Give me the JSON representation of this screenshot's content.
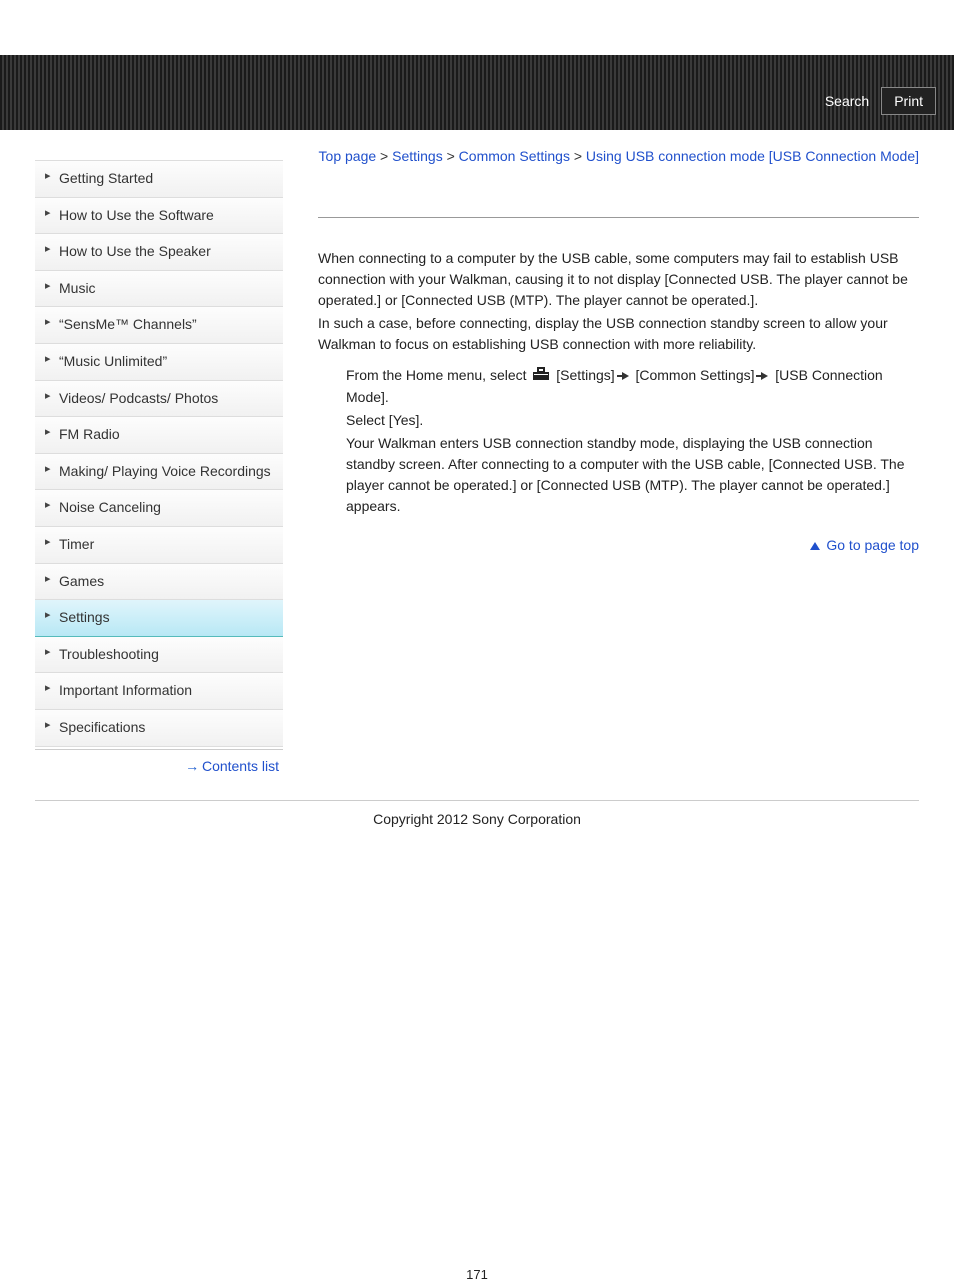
{
  "header": {
    "search": "Search",
    "print": "Print"
  },
  "sidebar": {
    "items": [
      {
        "label": "Getting Started",
        "active": false
      },
      {
        "label": "How to Use the Software",
        "active": false
      },
      {
        "label": "How to Use the Speaker",
        "active": false
      },
      {
        "label": "Music",
        "active": false
      },
      {
        "label": "“SensMe™ Channels”",
        "active": false
      },
      {
        "label": "“Music Unlimited”",
        "active": false
      },
      {
        "label": "Videos/ Podcasts/ Photos",
        "active": false
      },
      {
        "label": "FM Radio",
        "active": false
      },
      {
        "label": "Making/ Playing Voice Recordings",
        "active": false
      },
      {
        "label": "Noise Canceling",
        "active": false
      },
      {
        "label": "Timer",
        "active": false
      },
      {
        "label": "Games",
        "active": false
      },
      {
        "label": "Settings",
        "active": true
      },
      {
        "label": "Troubleshooting",
        "active": false
      },
      {
        "label": "Important Information",
        "active": false
      },
      {
        "label": "Specifications",
        "active": false
      }
    ],
    "contents_link": "Contents list"
  },
  "breadcrumb": {
    "items": [
      "Top page",
      "Settings",
      "Common Settings",
      "Using USB connection mode [USB Connection Mode]"
    ],
    "sep": ">"
  },
  "content": {
    "para1": "When connecting to a computer by the USB cable, some computers may fail to establish USB connection with your Walkman, causing it to not display [Connected USB. The player cannot be operated.] or [Connected USB (MTP). The player cannot be operated.].",
    "para2": "In such a case, before connecting, display the USB connection standby screen to allow your Walkman to focus on establishing USB connection with more reliability.",
    "step1_a": "From the Home menu, select ",
    "step1_b": " [Settings] ",
    "step1_c": " [Common Settings] ",
    "step1_d": " [USB Connection Mode].",
    "step2": "Select [Yes].",
    "step3": "Your Walkman enters USB connection standby mode, displaying the USB connection standby screen. After connecting to a computer with the USB cable, [Connected USB. The player cannot be operated.] or [Connected USB (MTP). The player cannot be operated.] appears."
  },
  "goto_top": "Go to page top",
  "copyright": "Copyright 2012 Sony Corporation",
  "page_number": "171",
  "colors": {
    "link": "#2050cc",
    "header_bg": "#2a2a2a",
    "sidebar_active": "#c8eef8",
    "divider": "#999999"
  }
}
